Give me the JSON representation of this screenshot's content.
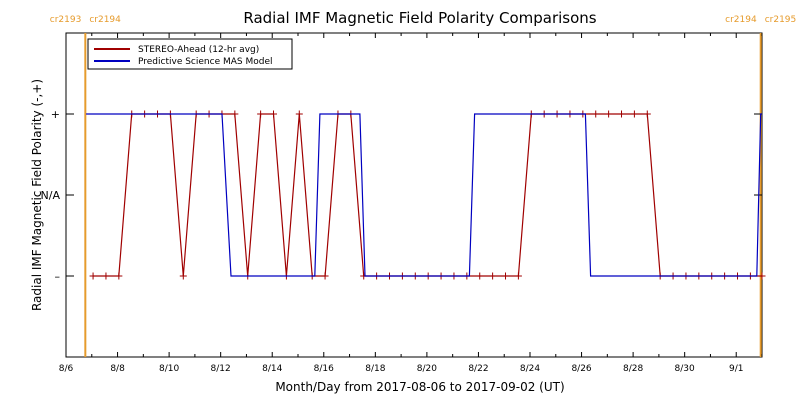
{
  "chart_data": {
    "type": "line",
    "title": "Radial IMF Magnetic Field Polarity Comparisons",
    "xlabel": "Month/Day from 2017-08-06 to 2017-09-02 (UT)",
    "ylabel": "Radial IMF Magnetic Field Polarity (-,+)",
    "x_start": "2017-08-06",
    "x_end": "2017-09-02",
    "xlim": [
      0,
      27
    ],
    "ylim": [
      -2,
      2
    ],
    "y_ticks": [
      {
        "value": 1,
        "label": "+"
      },
      {
        "value": 0,
        "label": "N/A"
      },
      {
        "value": -1,
        "label": "–"
      }
    ],
    "x_ticks": [
      {
        "value": 0,
        "label": "8/6"
      },
      {
        "value": 2,
        "label": "8/8"
      },
      {
        "value": 4,
        "label": "8/10"
      },
      {
        "value": 6,
        "label": "8/12"
      },
      {
        "value": 8,
        "label": "8/14"
      },
      {
        "value": 10,
        "label": "8/16"
      },
      {
        "value": 12,
        "label": "8/18"
      },
      {
        "value": 14,
        "label": "8/20"
      },
      {
        "value": 16,
        "label": "8/22"
      },
      {
        "value": 18,
        "label": "8/24"
      },
      {
        "value": 20,
        "label": "8/26"
      },
      {
        "value": 22,
        "label": "8/28"
      },
      {
        "value": 24,
        "label": "8/30"
      },
      {
        "value": 26,
        "label": "9/1"
      }
    ],
    "carrington_markers": [
      {
        "x": 0.75,
        "left_label": "cr2193",
        "right_label": "cr2194",
        "color": "#e69b2c"
      },
      {
        "x": 26.95,
        "left_label": "cr2194",
        "right_label": "cr2195",
        "color": "#e69b2c"
      }
    ],
    "legend": {
      "position": "top-left"
    },
    "series": [
      {
        "name": "STEREO-Ahead (12-hr avg)",
        "color": "#a00000",
        "marker": "plus",
        "x": [
          1.05,
          1.55,
          2.05,
          2.55,
          3.05,
          3.55,
          4.05,
          4.55,
          5.05,
          5.55,
          6.05,
          6.55,
          7.05,
          7.55,
          8.05,
          8.55,
          9.05,
          9.55,
          10.05,
          10.55,
          11.05,
          11.55,
          12.05,
          12.55,
          13.05,
          13.55,
          14.05,
          14.55,
          15.05,
          15.55,
          16.05,
          16.55,
          17.05,
          17.55,
          18.05,
          18.55,
          19.05,
          19.55,
          20.05,
          20.55,
          21.05,
          21.55,
          22.05,
          22.55,
          23.05,
          23.55,
          24.05,
          24.55,
          25.05,
          25.55,
          26.05,
          26.55,
          27.0
        ],
        "values": [
          -1,
          -1,
          -1,
          1,
          1,
          1,
          1,
          -1,
          1,
          1,
          1,
          1,
          -1,
          1,
          1,
          -1,
          1,
          -1,
          -1,
          1,
          1,
          -1,
          -1,
          -1,
          -1,
          -1,
          -1,
          -1,
          -1,
          -1,
          -1,
          -1,
          -1,
          -1,
          1,
          1,
          1,
          1,
          1,
          1,
          1,
          1,
          1,
          1,
          -1,
          -1,
          -1,
          -1,
          -1,
          -1,
          -1,
          -1,
          -1
        ]
      },
      {
        "name": "Predictive Science MAS Model",
        "color": "#0000c0",
        "marker": "none",
        "x": [
          0.78,
          6.05,
          6.4,
          9.65,
          9.85,
          11.4,
          11.6,
          15.65,
          15.85,
          20.15,
          20.35,
          26.8,
          26.95,
          27.0
        ],
        "values": [
          1,
          1,
          -1,
          -1,
          1,
          1,
          -1,
          -1,
          1,
          1,
          -1,
          -1,
          1,
          1
        ]
      }
    ]
  }
}
